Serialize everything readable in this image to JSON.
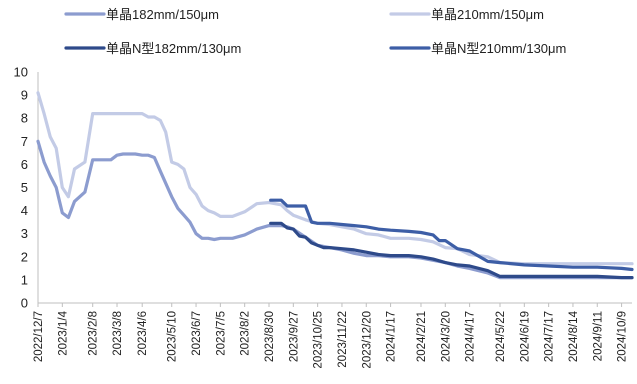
{
  "chart_data": {
    "type": "line",
    "title": "",
    "xlabel": "",
    "ylabel": "",
    "ylim": [
      0,
      10
    ],
    "y_ticks": [
      0,
      1,
      2,
      3,
      4,
      5,
      6,
      7,
      8,
      9,
      10
    ],
    "x_range": [
      "2022/12/7",
      "2024/10/21"
    ],
    "x_tick_labels": [
      "2022/12/7",
      "2023/1/4",
      "2023/2/8",
      "2023/3/8",
      "2023/4/6",
      "2023/5/10",
      "2023/6/7",
      "2023/7/5",
      "2023/8/2",
      "2023/8/30",
      "2023/9/27",
      "2023/10/25",
      "2023/11/22",
      "2023/12/20",
      "2024/1/17",
      "2024/2/21",
      "2024/3/20",
      "2024/4/17",
      "2024/5/22",
      "2024/6/19",
      "2024/7/17",
      "2024/8/14",
      "2024/9/11",
      "2024/10/9"
    ],
    "grid": false,
    "legend_position": "top",
    "series": [
      {
        "name": "单晶182mm/150μm",
        "color": "#8c9ccf",
        "points": [
          [
            "2022/12/7",
            7.0
          ],
          [
            "2022/12/14",
            6.1
          ],
          [
            "2022/12/21",
            5.5
          ],
          [
            "2022/12/28",
            5.0
          ],
          [
            "2023/1/4",
            3.9
          ],
          [
            "2023/1/11",
            3.7
          ],
          [
            "2023/1/18",
            4.4
          ],
          [
            "2023/1/30",
            4.8
          ],
          [
            "2023/2/8",
            6.2
          ],
          [
            "2023/2/15",
            6.2
          ],
          [
            "2023/2/22",
            6.2
          ],
          [
            "2023/3/1",
            6.2
          ],
          [
            "2023/3/8",
            6.4
          ],
          [
            "2023/3/15",
            6.45
          ],
          [
            "2023/3/22",
            6.45
          ],
          [
            "2023/3/29",
            6.45
          ],
          [
            "2023/4/6",
            6.4
          ],
          [
            "2023/4/13",
            6.4
          ],
          [
            "2023/4/20",
            6.3
          ],
          [
            "2023/4/27",
            5.7
          ],
          [
            "2023/5/10",
            4.6
          ],
          [
            "2023/5/17",
            4.1
          ],
          [
            "2023/5/24",
            3.8
          ],
          [
            "2023/5/31",
            3.5
          ],
          [
            "2023/6/7",
            3.0
          ],
          [
            "2023/6/14",
            2.8
          ],
          [
            "2023/6/21",
            2.8
          ],
          [
            "2023/6/28",
            2.75
          ],
          [
            "2023/7/5",
            2.8
          ],
          [
            "2023/7/19",
            2.8
          ],
          [
            "2023/8/2",
            2.95
          ],
          [
            "2023/8/16",
            3.2
          ],
          [
            "2023/8/30",
            3.35
          ],
          [
            "2023/9/13",
            3.35
          ],
          [
            "2023/9/20",
            3.3
          ],
          [
            "2023/9/27",
            3.2
          ],
          [
            "2023/10/11",
            2.85
          ],
          [
            "2023/10/25",
            2.5
          ],
          [
            "2023/11/8",
            2.4
          ],
          [
            "2023/11/22",
            2.3
          ],
          [
            "2023/12/6",
            2.15
          ],
          [
            "2023/12/20",
            2.05
          ],
          [
            "2024/1/3",
            2.05
          ],
          [
            "2024/1/17",
            2.0
          ],
          [
            "2024/2/7",
            2.0
          ],
          [
            "2024/2/21",
            1.95
          ],
          [
            "2024/3/6",
            1.85
          ],
          [
            "2024/3/20",
            1.75
          ],
          [
            "2024/4/3",
            1.6
          ],
          [
            "2024/4/17",
            1.5
          ],
          [
            "2024/5/8",
            1.3
          ],
          [
            "2024/5/22",
            1.1
          ],
          [
            "2024/6/19",
            1.1
          ],
          [
            "2024/7/17",
            1.1
          ],
          [
            "2024/8/14",
            1.1
          ],
          [
            "2024/9/11",
            1.1
          ],
          [
            "2024/10/9",
            1.1
          ],
          [
            "2024/10/21",
            1.1
          ]
        ]
      },
      {
        "name": "单晶210mm/150μm",
        "color": "#c3cbe6",
        "points": [
          [
            "2022/12/7",
            9.1
          ],
          [
            "2022/12/14",
            8.2
          ],
          [
            "2022/12/21",
            7.2
          ],
          [
            "2022/12/28",
            6.7
          ],
          [
            "2023/1/4",
            5.0
          ],
          [
            "2023/1/11",
            4.6
          ],
          [
            "2023/1/18",
            5.8
          ],
          [
            "2023/1/30",
            6.1
          ],
          [
            "2023/2/8",
            8.2
          ],
          [
            "2023/2/15",
            8.2
          ],
          [
            "2023/2/22",
            8.2
          ],
          [
            "2023/3/1",
            8.2
          ],
          [
            "2023/3/8",
            8.2
          ],
          [
            "2023/3/15",
            8.2
          ],
          [
            "2023/3/22",
            8.2
          ],
          [
            "2023/3/29",
            8.2
          ],
          [
            "2023/4/6",
            8.2
          ],
          [
            "2023/4/13",
            8.05
          ],
          [
            "2023/4/20",
            8.05
          ],
          [
            "2023/4/27",
            7.9
          ],
          [
            "2023/5/3",
            7.4
          ],
          [
            "2023/5/10",
            6.1
          ],
          [
            "2023/5/17",
            6.0
          ],
          [
            "2023/5/24",
            5.8
          ],
          [
            "2023/5/31",
            5.0
          ],
          [
            "2023/6/7",
            4.7
          ],
          [
            "2023/6/14",
            4.2
          ],
          [
            "2023/6/21",
            4.0
          ],
          [
            "2023/6/28",
            3.9
          ],
          [
            "2023/7/5",
            3.75
          ],
          [
            "2023/7/12",
            3.75
          ],
          [
            "2023/7/19",
            3.75
          ],
          [
            "2023/8/2",
            3.95
          ],
          [
            "2023/8/16",
            4.3
          ],
          [
            "2023/8/30",
            4.35
          ],
          [
            "2023/9/13",
            4.25
          ],
          [
            "2023/9/20",
            4.0
          ],
          [
            "2023/9/27",
            3.8
          ],
          [
            "2023/10/11",
            3.6
          ],
          [
            "2023/10/25",
            3.45
          ],
          [
            "2023/11/8",
            3.4
          ],
          [
            "2023/11/22",
            3.3
          ],
          [
            "2023/12/6",
            3.2
          ],
          [
            "2023/12/20",
            3.0
          ],
          [
            "2024/1/3",
            2.95
          ],
          [
            "2024/1/17",
            2.8
          ],
          [
            "2024/2/7",
            2.8
          ],
          [
            "2024/2/21",
            2.75
          ],
          [
            "2024/3/6",
            2.65
          ],
          [
            "2024/3/20",
            2.4
          ],
          [
            "2024/4/3",
            2.35
          ],
          [
            "2024/4/17",
            2.1
          ],
          [
            "2024/5/8",
            2.0
          ],
          [
            "2024/5/22",
            1.75
          ],
          [
            "2024/6/19",
            1.7
          ],
          [
            "2024/7/17",
            1.7
          ],
          [
            "2024/8/14",
            1.7
          ],
          [
            "2024/9/11",
            1.7
          ],
          [
            "2024/10/9",
            1.7
          ],
          [
            "2024/10/21",
            1.7
          ]
        ]
      },
      {
        "name": "单晶N型182mm/130μm",
        "color": "#2e4a8a",
        "points": [
          [
            "2023/9/1",
            3.45
          ],
          [
            "2023/9/13",
            3.45
          ],
          [
            "2023/9/20",
            3.25
          ],
          [
            "2023/9/27",
            3.2
          ],
          [
            "2023/10/4",
            2.9
          ],
          [
            "2023/10/11",
            2.85
          ],
          [
            "2023/10/18",
            2.6
          ],
          [
            "2023/10/25",
            2.5
          ],
          [
            "2023/11/1",
            2.4
          ],
          [
            "2023/11/8",
            2.4
          ],
          [
            "2023/11/22",
            2.35
          ],
          [
            "2023/12/6",
            2.3
          ],
          [
            "2023/12/20",
            2.2
          ],
          [
            "2024/1/3",
            2.1
          ],
          [
            "2024/1/17",
            2.05
          ],
          [
            "2024/2/7",
            2.05
          ],
          [
            "2024/2/21",
            2.0
          ],
          [
            "2024/3/6",
            1.9
          ],
          [
            "2024/3/20",
            1.75
          ],
          [
            "2024/4/3",
            1.65
          ],
          [
            "2024/4/17",
            1.6
          ],
          [
            "2024/5/8",
            1.4
          ],
          [
            "2024/5/22",
            1.15
          ],
          [
            "2024/6/19",
            1.15
          ],
          [
            "2024/7/17",
            1.15
          ],
          [
            "2024/8/14",
            1.15
          ],
          [
            "2024/9/11",
            1.15
          ],
          [
            "2024/10/9",
            1.1
          ],
          [
            "2024/10/21",
            1.1
          ]
        ]
      },
      {
        "name": "单晶N型210mm/130μm",
        "color": "#3d5ea6",
        "points": [
          [
            "2023/9/1",
            4.45
          ],
          [
            "2023/9/13",
            4.45
          ],
          [
            "2023/9/20",
            4.2
          ],
          [
            "2023/9/27",
            4.2
          ],
          [
            "2023/10/4",
            4.2
          ],
          [
            "2023/10/11",
            4.2
          ],
          [
            "2023/10/18",
            3.5
          ],
          [
            "2023/10/25",
            3.45
          ],
          [
            "2023/11/8",
            3.45
          ],
          [
            "2023/11/22",
            3.4
          ],
          [
            "2023/12/6",
            3.35
          ],
          [
            "2023/12/20",
            3.3
          ],
          [
            "2024/1/3",
            3.2
          ],
          [
            "2024/1/17",
            3.15
          ],
          [
            "2024/2/7",
            3.1
          ],
          [
            "2024/2/21",
            3.05
          ],
          [
            "2024/3/6",
            2.95
          ],
          [
            "2024/3/13",
            2.7
          ],
          [
            "2024/3/20",
            2.7
          ],
          [
            "2024/4/3",
            2.35
          ],
          [
            "2024/4/17",
            2.25
          ],
          [
            "2024/5/8",
            1.8
          ],
          [
            "2024/5/22",
            1.75
          ],
          [
            "2024/6/19",
            1.65
          ],
          [
            "2024/7/17",
            1.6
          ],
          [
            "2024/8/14",
            1.55
          ],
          [
            "2024/9/11",
            1.55
          ],
          [
            "2024/10/9",
            1.5
          ],
          [
            "2024/10/21",
            1.45
          ]
        ]
      }
    ]
  }
}
